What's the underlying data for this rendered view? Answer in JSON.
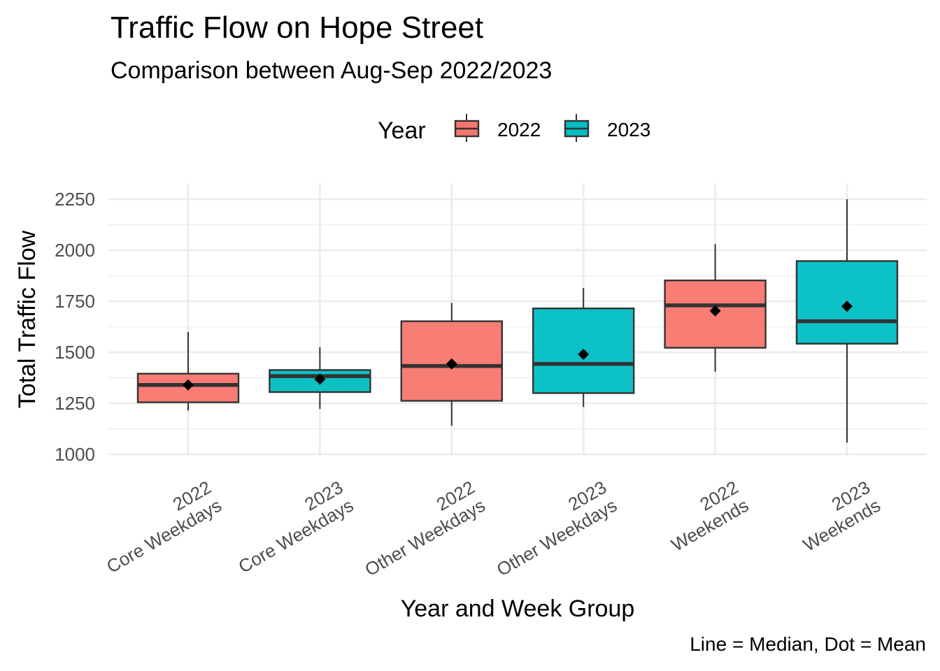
{
  "chart_data": {
    "type": "boxplot",
    "title": "Traffic Flow on Hope Street",
    "subtitle": "Comparison between Aug-Sep 2022/2023",
    "xlabel": "Year and Week Group",
    "ylabel": "Total Traffic Flow",
    "caption": "Line = Median, Dot = Mean",
    "ylim": [
      1000,
      2250
    ],
    "yticks": [
      1000,
      1250,
      1500,
      1750,
      2000,
      2250
    ],
    "grid": true,
    "legend": {
      "title": "Year",
      "position": "top",
      "entries": [
        {
          "label": "2022",
          "color": "#F8766D"
        },
        {
          "label": "2023",
          "color": "#00BFC4"
        }
      ]
    },
    "categories": [
      {
        "line1": "2022",
        "line2": "Core Weekdays"
      },
      {
        "line1": "2023",
        "line2": "Core Weekdays"
      },
      {
        "line1": "2022",
        "line2": "Other Weekdays"
      },
      {
        "line1": "2023",
        "line2": "Other Weekdays"
      },
      {
        "line1": "2022",
        "line2": "Weekends"
      },
      {
        "line1": "2023",
        "line2": "Weekends"
      }
    ],
    "boxes": [
      {
        "year": "2022",
        "whisker_low": 1215,
        "q1": 1255,
        "median": 1340,
        "q3": 1395,
        "whisker_high": 1600,
        "mean": 1340
      },
      {
        "year": "2023",
        "whisker_low": 1222,
        "q1": 1305,
        "median": 1383,
        "q3": 1413,
        "whisker_high": 1525,
        "mean": 1368
      },
      {
        "year": "2022",
        "whisker_low": 1140,
        "q1": 1262,
        "median": 1433,
        "q3": 1652,
        "whisker_high": 1742,
        "mean": 1443
      },
      {
        "year": "2023",
        "whisker_low": 1232,
        "q1": 1300,
        "median": 1443,
        "q3": 1715,
        "whisker_high": 1815,
        "mean": 1490
      },
      {
        "year": "2022",
        "whisker_low": 1405,
        "q1": 1522,
        "median": 1730,
        "q3": 1852,
        "whisker_high": 2030,
        "mean": 1703
      },
      {
        "year": "2023",
        "whisker_low": 1058,
        "q1": 1542,
        "median": 1652,
        "q3": 1947,
        "whisker_high": 2250,
        "mean": 1725
      }
    ]
  }
}
